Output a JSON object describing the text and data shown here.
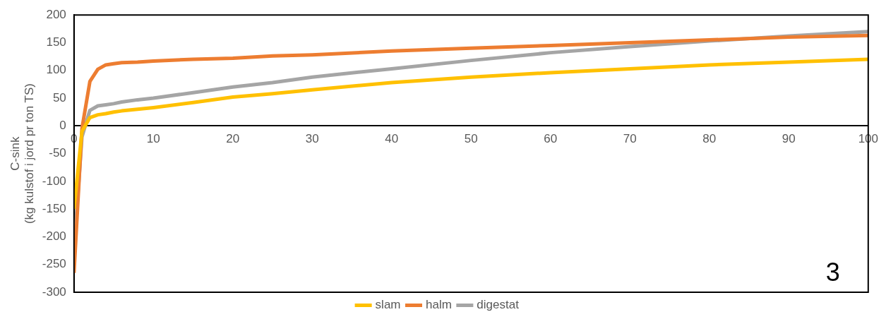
{
  "chart_data": {
    "type": "line",
    "ylabel": "C-sink\n(kg kulstof i jord pr ton TS)",
    "x": [
      0,
      1,
      2,
      3,
      4,
      5,
      6,
      8,
      10,
      15,
      20,
      25,
      30,
      40,
      50,
      60,
      70,
      80,
      90,
      100
    ],
    "series": [
      {
        "name": "slam",
        "color": "#ffc000",
        "values": [
          -150,
          -10,
          15,
          20,
          22,
          25,
          27,
          30,
          33,
          42,
          52,
          58,
          65,
          78,
          88,
          96,
          103,
          110,
          115,
          120
        ]
      },
      {
        "name": "halm",
        "color": "#ed7d31",
        "values": [
          -265,
          -5,
          80,
          102,
          110,
          112,
          114,
          115,
          117,
          120,
          122,
          126,
          128,
          135,
          140,
          145,
          150,
          155,
          160,
          163
        ]
      },
      {
        "name": "digestat",
        "color": "#a5a5a5",
        "values": [
          -223,
          -20,
          28,
          36,
          38,
          40,
          43,
          47,
          50,
          60,
          70,
          78,
          88,
          103,
          118,
          132,
          143,
          153,
          162,
          170
        ]
      }
    ],
    "xlim": [
      0,
      100
    ],
    "xticks": [
      0,
      10,
      20,
      30,
      40,
      50,
      60,
      70,
      80,
      90,
      100
    ],
    "ylim": [
      -300,
      200
    ],
    "yticks": [
      -300,
      -250,
      -200,
      -150,
      -100,
      -50,
      0,
      50,
      100,
      150,
      200
    ],
    "grid": false,
    "legend": "bottom",
    "marker": "none",
    "line_style": "solid",
    "annotations": [
      "3"
    ]
  }
}
